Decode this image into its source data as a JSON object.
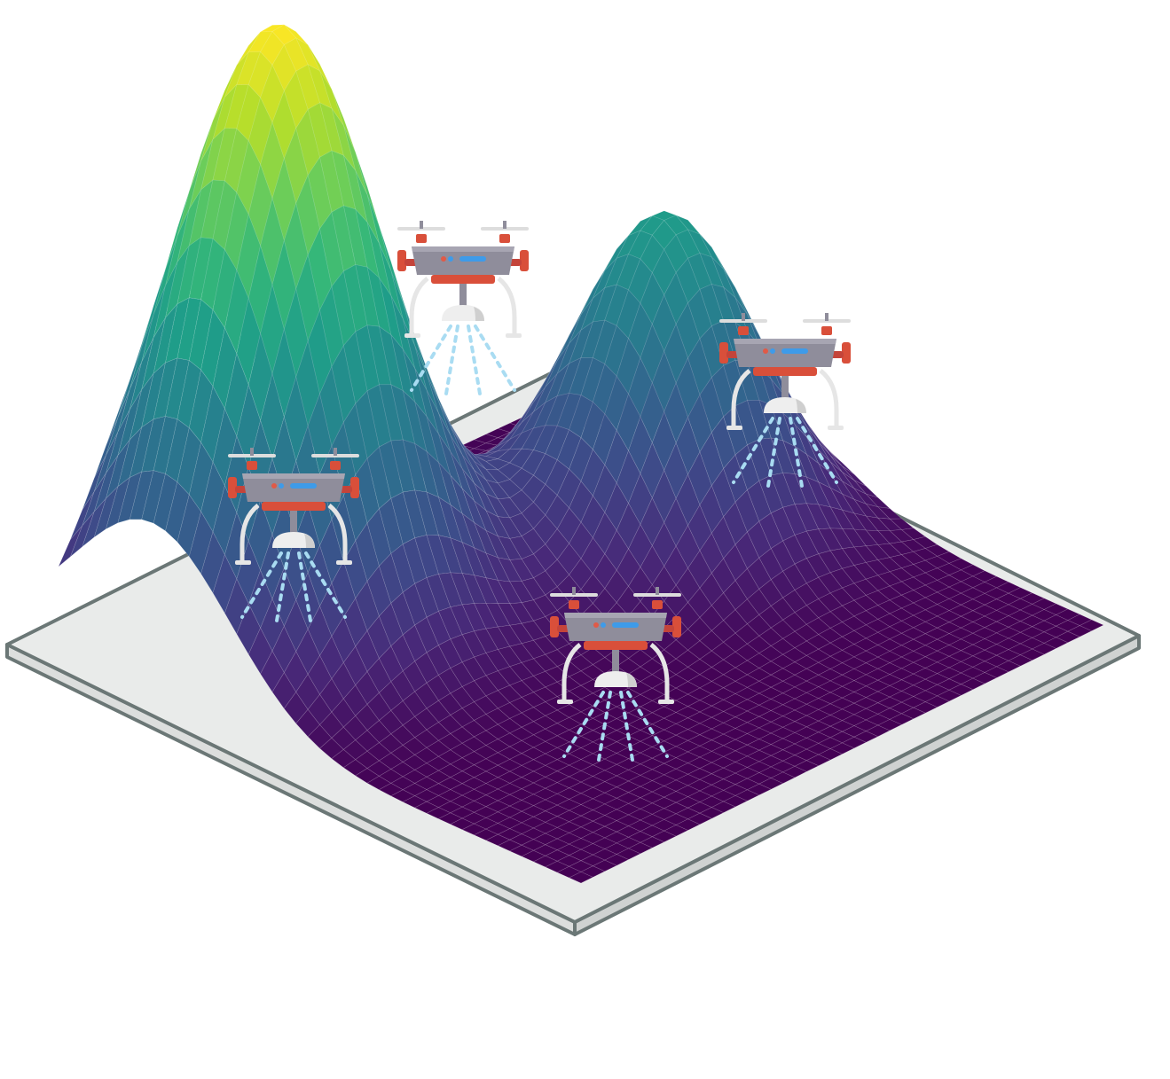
{
  "scene": {
    "surface": {
      "colormap": [
        "#440154",
        "#482878",
        "#3e4a89",
        "#31688e",
        "#26828e",
        "#1f9e89",
        "#35b779",
        "#6ece58",
        "#b5de2b",
        "#fde725"
      ],
      "peaks": [
        {
          "name": "main-peak",
          "height": 1.0
        },
        {
          "name": "secondary-peak",
          "height": 0.55
        }
      ]
    },
    "platform": {
      "fill": "#e9ebea",
      "edge": "#6b7776"
    },
    "drones": [
      {
        "name": "drone-upper-left"
      },
      {
        "name": "drone-right"
      },
      {
        "name": "drone-left"
      },
      {
        "name": "drone-center"
      }
    ],
    "drone_colors": {
      "body": "#8f8d9b",
      "accent": "#d94f3a",
      "light": "#3e9be9",
      "legs": "#e6e6e6",
      "spray": "#a9dcf2"
    }
  }
}
